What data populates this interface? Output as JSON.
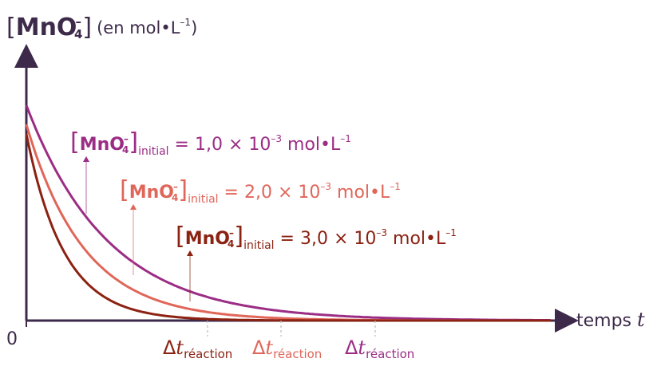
{
  "chart_data": {
    "type": "line",
    "ylabel": {
      "bracket_left": "[",
      "species": "MnO",
      "subscript": "4",
      "charge": "–",
      "bracket_right": "]",
      "unit": "(en mol•L",
      "unit_exp": "–1",
      "unit_close": ")"
    },
    "xlabel": {
      "text": "temps",
      "var": "t"
    },
    "origin_label": "0",
    "grid": false,
    "series": [
      {
        "color": "#9b2d85",
        "label": {
          "species": "MnO",
          "subscript": "4",
          "charge": "–",
          "sub": "initial",
          "eq": "= 1,0 × 10",
          "exp": "–3",
          "unit": " mol•L",
          "unit_exp": "–1"
        },
        "y0": 0.9,
        "tau": 0.78,
        "delta_label": {
          "symbol": "Δ",
          "var": "t",
          "sub": "réaction"
        }
      },
      {
        "color": "#e0665a",
        "label": {
          "species": "MnO",
          "subscript": "4",
          "charge": "–",
          "sub": "initial",
          "eq": "= 2,0 × 10",
          "exp": "–3",
          "unit": " mol•L",
          "unit_exp": "–1"
        },
        "y0": 0.82,
        "tau": 0.55,
        "delta_label": {
          "symbol": "Δ",
          "var": "t",
          "sub": "réaction"
        }
      },
      {
        "color": "#8b2212",
        "label": {
          "species": "MnO",
          "subscript": "4",
          "charge": "–",
          "sub": "initial",
          "eq": "= 3,0 × 10",
          "exp": "–3",
          "unit": " mol•L",
          "unit_exp": "–1"
        },
        "y0": 0.78,
        "tau": 0.36,
        "delta_label": {
          "symbol": "Δ",
          "var": "t",
          "sub": "réaction"
        }
      }
    ],
    "axis_color": "#3d2a4a"
  }
}
